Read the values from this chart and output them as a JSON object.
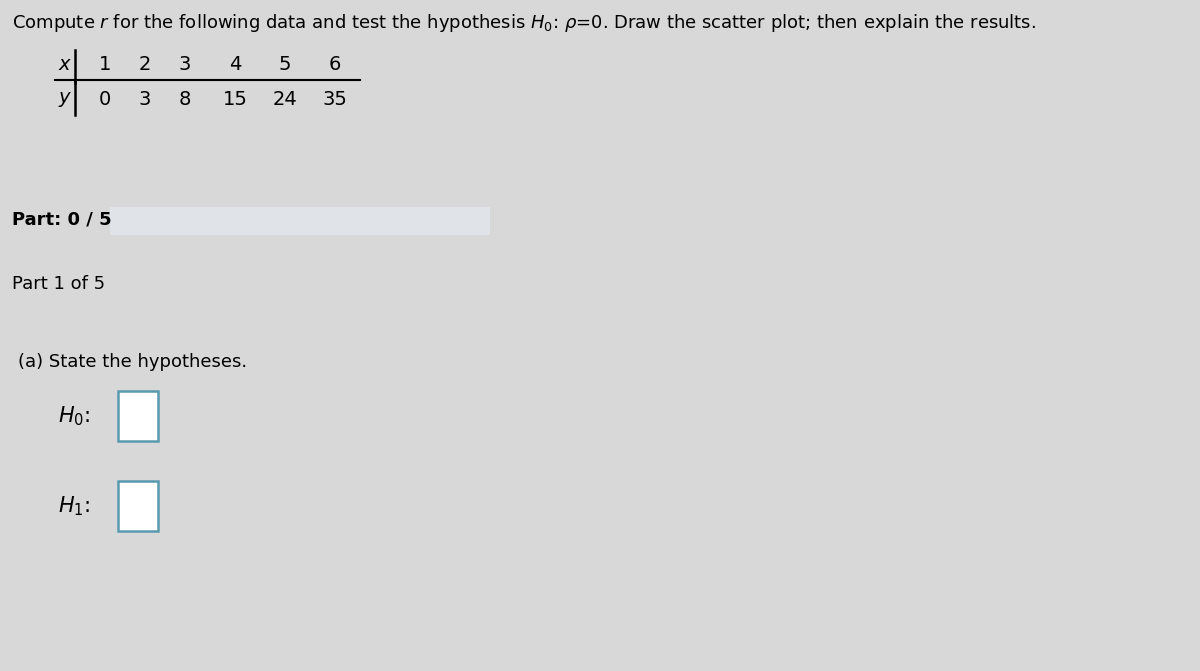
{
  "title_text": "Compute r for the following data and test the hypothesis $H_0$: $\\rho$=0. Draw the scatter plot; then explain the results.",
  "x_values": [
    1,
    2,
    3,
    4,
    5,
    6
  ],
  "y_values": [
    0,
    3,
    8,
    15,
    24,
    35
  ],
  "part_progress_label": "Part: 0 / 5",
  "part_label": "Part 1 of 5",
  "part_a_label": "(a) State the hypotheses.",
  "h0_label": "H_0:",
  "h1_label": "H_1:",
  "bg_main": "#d8d8d8",
  "bg_top_white": "#f0f0f0",
  "bg_part_band": "#c0c4c8",
  "bg_thin_sep": "#9098a0",
  "bg_part1_header": "#b4bcc4",
  "bg_content": "#d0d4d8",
  "progress_bar_bg": "#e0e4e8",
  "box_border": "#5a9ab0",
  "box_fill": "#ffffff",
  "font_size_title": 13,
  "font_size_table": 13,
  "font_size_part": 13,
  "font_size_section": 13,
  "font_size_hyp": 15
}
